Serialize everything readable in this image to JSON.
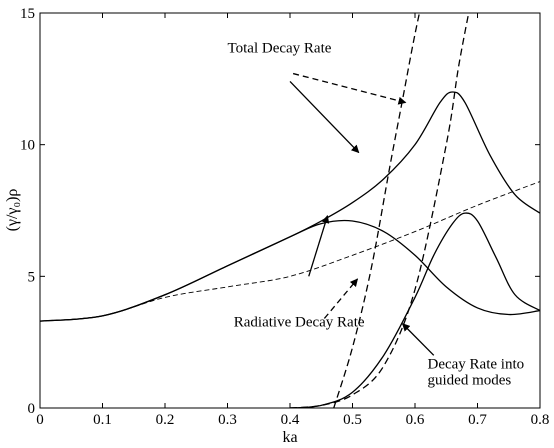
{
  "chart_data": {
    "type": "line",
    "xlabel": "ka",
    "ylabel": "(γ/γ₀)ρ",
    "xlim": [
      0,
      0.8
    ],
    "ylim": [
      0,
      15
    ],
    "xticks": [
      "0",
      "0.1",
      "0.2",
      "0.3",
      "0.4",
      "0.5",
      "0.6",
      "0.7",
      "0.8"
    ],
    "yticks": [
      "0",
      "5",
      "10",
      "15"
    ],
    "grid": false,
    "legend": "none",
    "series": [
      {
        "style": "solid",
        "x": [
          0,
          0.1,
          0.2,
          0.3,
          0.4,
          0.45,
          0.5,
          0.55,
          0.6,
          0.64,
          0.66,
          0.68,
          0.72,
          0.76,
          0.8
        ],
        "y": [
          3.3,
          3.5,
          4.3,
          5.4,
          6.5,
          7.1,
          7.8,
          8.7,
          10.0,
          11.6,
          12.0,
          11.6,
          9.6,
          8.1,
          7.4
        ]
      },
      {
        "style": "dashed",
        "x": [
          0.47,
          0.5,
          0.53,
          0.56,
          0.58,
          0.6,
          0.62
        ],
        "y": [
          0,
          2.3,
          5.3,
          9.2,
          11.7,
          14.2,
          16.4
        ]
      },
      {
        "style": "solid",
        "x": [
          0,
          0.1,
          0.2,
          0.3,
          0.4,
          0.45,
          0.5,
          0.55,
          0.6,
          0.65,
          0.7,
          0.75,
          0.8
        ],
        "y": [
          3.3,
          3.5,
          4.3,
          5.4,
          6.5,
          7.0,
          7.1,
          6.7,
          5.8,
          4.6,
          3.8,
          3.55,
          3.7
        ]
      },
      {
        "style": "dashed",
        "x": [
          0,
          0.1,
          0.2,
          0.3,
          0.4,
          0.5,
          0.6,
          0.7,
          0.8
        ],
        "y": [
          3.3,
          3.5,
          4.2,
          4.6,
          5.0,
          5.8,
          6.7,
          7.7,
          8.6
        ]
      },
      {
        "style": "solid",
        "x": [
          0.4,
          0.45,
          0.5,
          0.55,
          0.6,
          0.63,
          0.66,
          0.68,
          0.7,
          0.73,
          0.76,
          0.8
        ],
        "y": [
          0,
          0.1,
          0.6,
          2.0,
          4.2,
          5.8,
          7.0,
          7.4,
          7.1,
          5.7,
          4.3,
          3.7
        ]
      },
      {
        "style": "dashed",
        "x": [
          0.4,
          0.45,
          0.5,
          0.55,
          0.6,
          0.65,
          0.67,
          0.69
        ],
        "y": [
          0,
          0.1,
          0.5,
          1.6,
          4.5,
          10.0,
          13.0,
          15.5
        ]
      }
    ],
    "annotations": [
      {
        "text": "Total Decay Rate",
        "x": 0.3,
        "y": 13.5
      },
      {
        "text": "Radiative Decay Rate",
        "x": 0.31,
        "y": 3.1
      },
      {
        "text": "Decay Rate into",
        "x": 0.62,
        "y": 1.5
      },
      {
        "text": "guided modes",
        "x": 0.62,
        "y": 0.9
      }
    ],
    "arrows": [
      {
        "style": "solid",
        "from": [
          0.4,
          12.4
        ],
        "to": [
          0.51,
          9.7
        ]
      },
      {
        "style": "dashed",
        "from": [
          0.405,
          12.7
        ],
        "to": [
          0.585,
          11.6
        ]
      },
      {
        "style": "solid",
        "from": [
          0.43,
          5.0
        ],
        "to": [
          0.46,
          7.3
        ]
      },
      {
        "style": "dashed",
        "from": [
          0.455,
          3.4
        ],
        "to": [
          0.508,
          4.9
        ]
      },
      {
        "style": "solid",
        "from": [
          0.63,
          2.0
        ],
        "to": [
          0.58,
          3.2
        ]
      }
    ]
  }
}
